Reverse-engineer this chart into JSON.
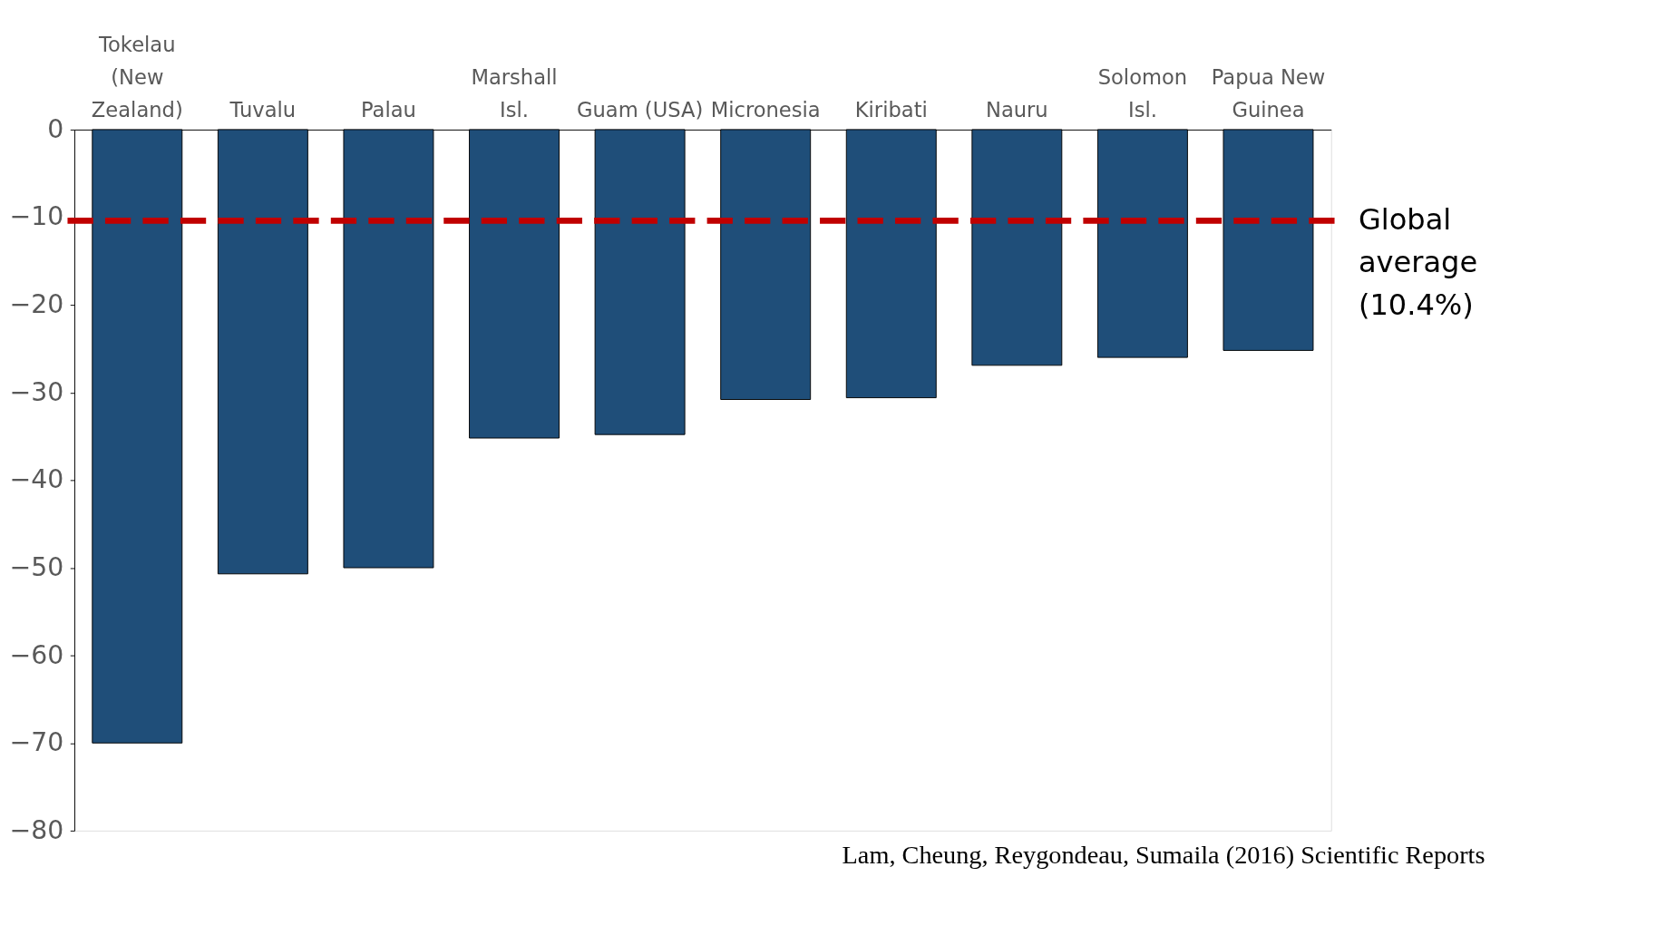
{
  "chart_data": {
    "type": "bar",
    "categories": [
      "Tokelau (New Zealand)",
      "Tuvalu",
      "Palau",
      "Marshall Isl.",
      "Guam (USA)",
      "Micronesia",
      "Kiribati",
      "Nauru",
      "Solomon Isl.",
      "Papua New Guinea"
    ],
    "values": [
      -70.0,
      -50.7,
      -50.0,
      -35.2,
      -34.8,
      -30.8,
      -30.6,
      -26.9,
      -26.0,
      -25.2
    ],
    "color": "#1f4e79",
    "ylim": [
      -80,
      0
    ],
    "yticks": [
      0,
      -10,
      -20,
      -30,
      -40,
      -50,
      -60,
      -70,
      -80
    ],
    "grid": false,
    "ref_lines": [
      {
        "axis": "y",
        "value": -10.4,
        "label": "Global average (10.4%)",
        "color": "#c00000",
        "line_style": "dashed"
      }
    ],
    "annotations": [
      "Lam, Cheung, Reygondeau, Sumaila (2016) Scientific Reports"
    ]
  }
}
